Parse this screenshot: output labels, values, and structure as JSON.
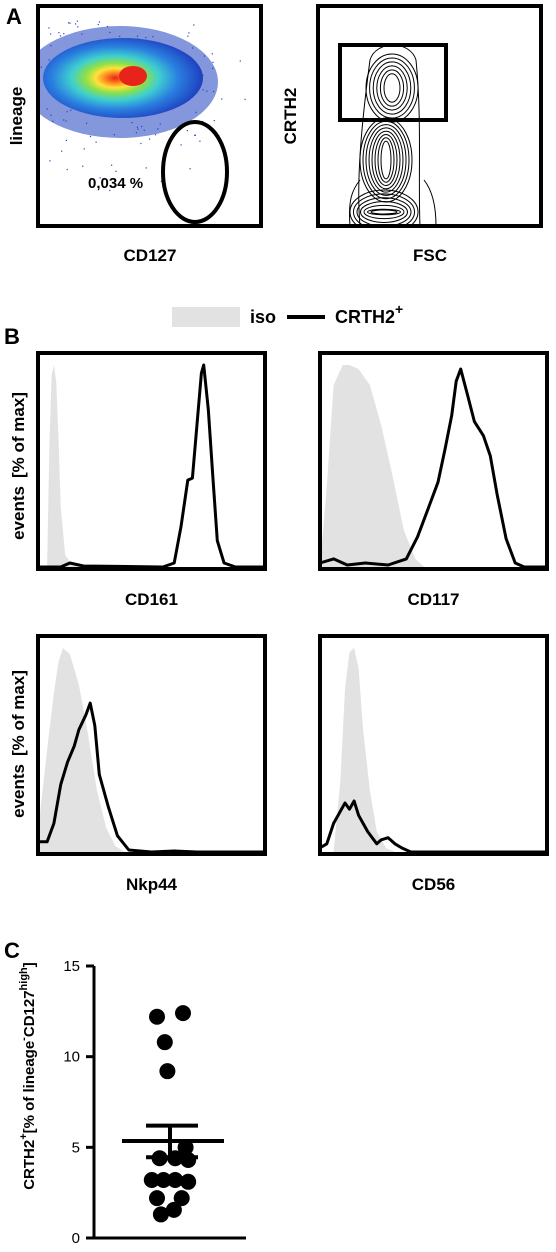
{
  "figure": {
    "panel_letters": [
      "A",
      "B",
      "C"
    ]
  },
  "chart_data": [
    {
      "panel": "A",
      "type": "scatter",
      "plot": "density-dot-plot",
      "xlabel": "CD127",
      "ylabel": "lineage",
      "annotations": [
        "0,034 %"
      ],
      "gate": "ellipse",
      "colors": {
        "low": "#1f3fbf",
        "mid": "#3ecfd0",
        "high_1": "#8be04a",
        "high_2": "#ffe23a",
        "peak": "#e8231c"
      }
    },
    {
      "panel": "A",
      "type": "scatter",
      "plot": "contour-plot",
      "xlabel": "FSC",
      "ylabel": "CRTH2",
      "gate": "rectangle"
    },
    {
      "panel": "B",
      "type": "area",
      "plot": "histogram-grid",
      "ylabel_parts": {
        "main": "events",
        "unit": "[% of max]"
      },
      "legend": {
        "position": "top-center",
        "entries": [
          {
            "label": "iso",
            "style": "filled",
            "color": "#e2e2e2"
          },
          {
            "label": "CRTH2",
            "superscript": "+",
            "style": "line",
            "color": "#000000"
          }
        ]
      },
      "histograms": [
        {
          "xlabel": "CD161",
          "iso": [
            [
              0.04,
              0
            ],
            [
              0.05,
              0.6
            ],
            [
              0.06,
              0.95
            ],
            [
              0.07,
              1.0
            ],
            [
              0.08,
              0.92
            ],
            [
              0.09,
              0.65
            ],
            [
              0.1,
              0.3
            ],
            [
              0.12,
              0.06
            ],
            [
              0.15,
              0.01
            ],
            [
              0.2,
              0
            ]
          ],
          "crth2": [
            [
              0.0,
              0
            ],
            [
              0.1,
              0
            ],
            [
              0.14,
              0.02
            ],
            [
              0.2,
              0.005
            ],
            [
              0.55,
              0
            ],
            [
              0.6,
              0.02
            ],
            [
              0.63,
              0.2
            ],
            [
              0.66,
              0.43
            ],
            [
              0.68,
              0.44
            ],
            [
              0.7,
              0.7
            ],
            [
              0.72,
              0.96
            ],
            [
              0.73,
              1.0
            ],
            [
              0.75,
              0.78
            ],
            [
              0.77,
              0.45
            ],
            [
              0.79,
              0.13
            ],
            [
              0.82,
              0.02
            ],
            [
              0.87,
              0
            ],
            [
              1.0,
              0
            ]
          ]
        },
        {
          "xlabel": "CD117",
          "iso": [
            [
              0.0,
              0
            ],
            [
              0.03,
              0.4
            ],
            [
              0.06,
              0.9
            ],
            [
              0.1,
              1.0
            ],
            [
              0.13,
              1.0
            ],
            [
              0.17,
              0.98
            ],
            [
              0.22,
              0.9
            ],
            [
              0.27,
              0.7
            ],
            [
              0.32,
              0.45
            ],
            [
              0.37,
              0.18
            ],
            [
              0.42,
              0.04
            ],
            [
              0.46,
              0
            ]
          ],
          "crth2": [
            [
              0.0,
              0.02
            ],
            [
              0.06,
              0.04
            ],
            [
              0.12,
              0.01
            ],
            [
              0.2,
              0.02
            ],
            [
              0.3,
              0.01
            ],
            [
              0.38,
              0.04
            ],
            [
              0.43,
              0.15
            ],
            [
              0.48,
              0.3
            ],
            [
              0.52,
              0.42
            ],
            [
              0.55,
              0.58
            ],
            [
              0.58,
              0.75
            ],
            [
              0.6,
              0.92
            ],
            [
              0.62,
              0.98
            ],
            [
              0.65,
              0.85
            ],
            [
              0.68,
              0.72
            ],
            [
              0.72,
              0.65
            ],
            [
              0.75,
              0.55
            ],
            [
              0.78,
              0.36
            ],
            [
              0.82,
              0.14
            ],
            [
              0.86,
              0.02
            ],
            [
              0.9,
              0
            ],
            [
              1.0,
              0
            ]
          ]
        },
        {
          "xlabel": "Nkp44",
          "iso": [
            [
              0.0,
              0.1
            ],
            [
              0.04,
              0.5
            ],
            [
              0.07,
              0.78
            ],
            [
              0.09,
              0.93
            ],
            [
              0.11,
              1.0
            ],
            [
              0.14,
              0.97
            ],
            [
              0.18,
              0.82
            ],
            [
              0.22,
              0.58
            ],
            [
              0.26,
              0.3
            ],
            [
              0.3,
              0.12
            ],
            [
              0.34,
              0.03
            ],
            [
              0.38,
              0
            ]
          ],
          "crth2": [
            [
              0.0,
              0.05
            ],
            [
              0.04,
              0.05
            ],
            [
              0.07,
              0.14
            ],
            [
              0.1,
              0.33
            ],
            [
              0.13,
              0.44
            ],
            [
              0.16,
              0.52
            ],
            [
              0.18,
              0.6
            ],
            [
              0.21,
              0.67
            ],
            [
              0.23,
              0.73
            ],
            [
              0.25,
              0.62
            ],
            [
              0.27,
              0.38
            ],
            [
              0.31,
              0.22
            ],
            [
              0.35,
              0.08
            ],
            [
              0.4,
              0.01
            ],
            [
              0.45,
              0.005
            ],
            [
              0.5,
              0
            ],
            [
              0.6,
              0.005
            ],
            [
              0.7,
              0
            ],
            [
              1.0,
              0
            ]
          ]
        },
        {
          "xlabel": "CD56",
          "iso": [
            [
              0.06,
              0
            ],
            [
              0.09,
              0.35
            ],
            [
              0.11,
              0.8
            ],
            [
              0.13,
              0.98
            ],
            [
              0.15,
              1.0
            ],
            [
              0.17,
              0.9
            ],
            [
              0.19,
              0.6
            ],
            [
              0.22,
              0.3
            ],
            [
              0.25,
              0.1
            ],
            [
              0.29,
              0.02
            ],
            [
              0.33,
              0
            ]
          ],
          "crth2": [
            [
              0.0,
              0.02
            ],
            [
              0.03,
              0.04
            ],
            [
              0.06,
              0.14
            ],
            [
              0.09,
              0.2
            ],
            [
              0.11,
              0.24
            ],
            [
              0.13,
              0.21
            ],
            [
              0.15,
              0.25
            ],
            [
              0.17,
              0.18
            ],
            [
              0.19,
              0.14
            ],
            [
              0.21,
              0.1
            ],
            [
              0.23,
              0.07
            ],
            [
              0.25,
              0.04
            ],
            [
              0.27,
              0.06
            ],
            [
              0.3,
              0.07
            ],
            [
              0.33,
              0.04
            ],
            [
              0.36,
              0.02
            ],
            [
              0.4,
              0
            ],
            [
              1.0,
              0
            ]
          ]
        }
      ]
    },
    {
      "panel": "C",
      "type": "scatter",
      "plot": "dot-plot-mean-sem",
      "ylabel_main": "CRTH2",
      "ylabel_main_sup": "+",
      "ylabel_rest": "[% of lineage",
      "ylabel_sup_1": "-",
      "ylabel_mid": "CD127",
      "ylabel_sup_2": "high",
      "ylabel_end": "]",
      "ylim": [
        0,
        15
      ],
      "yticks": [
        0,
        5,
        10,
        15
      ],
      "points": [
        {
          "x": 0.5,
          "y": 12.4
        },
        {
          "x": -0.5,
          "y": 12.2
        },
        {
          "x": -0.2,
          "y": 10.8
        },
        {
          "x": -0.1,
          "y": 9.2
        },
        {
          "x": 0.6,
          "y": 5.0
        },
        {
          "x": -0.4,
          "y": 4.4
        },
        {
          "x": 0.2,
          "y": 4.4
        },
        {
          "x": 0.7,
          "y": 4.3
        },
        {
          "x": -0.7,
          "y": 3.2
        },
        {
          "x": -0.25,
          "y": 3.2
        },
        {
          "x": 0.2,
          "y": 3.2
        },
        {
          "x": 0.7,
          "y": 3.1
        },
        {
          "x": -0.5,
          "y": 2.2
        },
        {
          "x": 0.45,
          "y": 2.2
        },
        {
          "x": -0.35,
          "y": 1.3
        },
        {
          "x": 0.15,
          "y": 1.55
        }
      ],
      "mean": 5.35,
      "sem_upper": 6.2,
      "sem_lower": 4.45
    }
  ]
}
